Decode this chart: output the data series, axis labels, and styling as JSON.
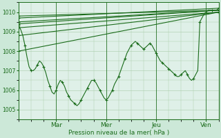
{
  "xlabel": "Pression niveau de la mer( hPa )",
  "ylim": [
    1004.5,
    1010.5
  ],
  "xlim": [
    0,
    96
  ],
  "yticks": [
    1005,
    1006,
    1007,
    1008,
    1009,
    1010
  ],
  "day_labels": [
    "Mar",
    "Mer",
    "Jeu",
    "Ven"
  ],
  "day_positions": [
    18,
    42,
    66,
    90
  ],
  "bg_color": "#cce8d8",
  "plot_bg_color": "#dff0e8",
  "grid_color": "#a8cca8",
  "line_color": "#1a6b1a",
  "linewidth": 0.8,
  "straight_series": [
    {
      "x0": 0,
      "y0": 1009.5,
      "x1": 96,
      "y1": 1010.1
    },
    {
      "x0": 0,
      "y0": 1009.2,
      "x1": 96,
      "y1": 1010.0
    },
    {
      "x0": 0,
      "y0": 1009.7,
      "x1": 96,
      "y1": 1010.2
    },
    {
      "x0": 0,
      "y0": 1008.8,
      "x1": 96,
      "y1": 1010.0
    },
    {
      "x0": 0,
      "y0": 1009.8,
      "x1": 96,
      "y1": 1010.1
    },
    {
      "x0": 0,
      "y0": 1008.0,
      "x1": 96,
      "y1": 1010.0
    },
    {
      "x0": 0,
      "y0": 1009.4,
      "x1": 96,
      "y1": 1010.1
    }
  ],
  "detailed_x": [
    0,
    1,
    2,
    3,
    4,
    5,
    6,
    7,
    8,
    9,
    10,
    11,
    12,
    13,
    14,
    15,
    16,
    17,
    18,
    19,
    20,
    21,
    22,
    23,
    24,
    25,
    26,
    27,
    28,
    29,
    30,
    31,
    32,
    33,
    34,
    35,
    36,
    37,
    38,
    39,
    40,
    41,
    42,
    43,
    44,
    45,
    46,
    47,
    48,
    49,
    50,
    51,
    52,
    53,
    54,
    55,
    56,
    57,
    58,
    59,
    60,
    61,
    62,
    63,
    64,
    65,
    66,
    67,
    68,
    69,
    70,
    71,
    72,
    73,
    74,
    75,
    76,
    77,
    78,
    79,
    80,
    81,
    82,
    83,
    84,
    85,
    86,
    87,
    88,
    89,
    90,
    91,
    92,
    93,
    94,
    95,
    96
  ],
  "detailed_y": [
    1009.3,
    1009.1,
    1008.8,
    1008.3,
    1007.7,
    1007.2,
    1007.0,
    1007.0,
    1007.1,
    1007.3,
    1007.5,
    1007.4,
    1007.2,
    1006.9,
    1006.5,
    1006.2,
    1005.9,
    1005.8,
    1006.0,
    1006.3,
    1006.5,
    1006.4,
    1006.2,
    1005.9,
    1005.7,
    1005.5,
    1005.4,
    1005.3,
    1005.2,
    1005.3,
    1005.5,
    1005.7,
    1005.9,
    1006.1,
    1006.3,
    1006.5,
    1006.5,
    1006.4,
    1006.2,
    1006.0,
    1005.8,
    1005.6,
    1005.5,
    1005.6,
    1005.8,
    1006.0,
    1006.3,
    1006.5,
    1006.7,
    1007.0,
    1007.3,
    1007.6,
    1007.9,
    1008.1,
    1008.3,
    1008.4,
    1008.5,
    1008.4,
    1008.3,
    1008.2,
    1008.1,
    1008.2,
    1008.3,
    1008.4,
    1008.3,
    1008.1,
    1007.9,
    1007.7,
    1007.5,
    1007.4,
    1007.3,
    1007.2,
    1007.1,
    1007.0,
    1006.9,
    1006.8,
    1006.7,
    1006.7,
    1006.8,
    1006.9,
    1007.0,
    1006.8,
    1006.6,
    1006.5,
    1006.6,
    1006.8,
    1007.0,
    1009.5,
    1009.7,
    1009.9,
    1010.0,
    1010.1,
    1010.1,
    1010.1,
    1010.1,
    1010.1,
    1010.2
  ]
}
